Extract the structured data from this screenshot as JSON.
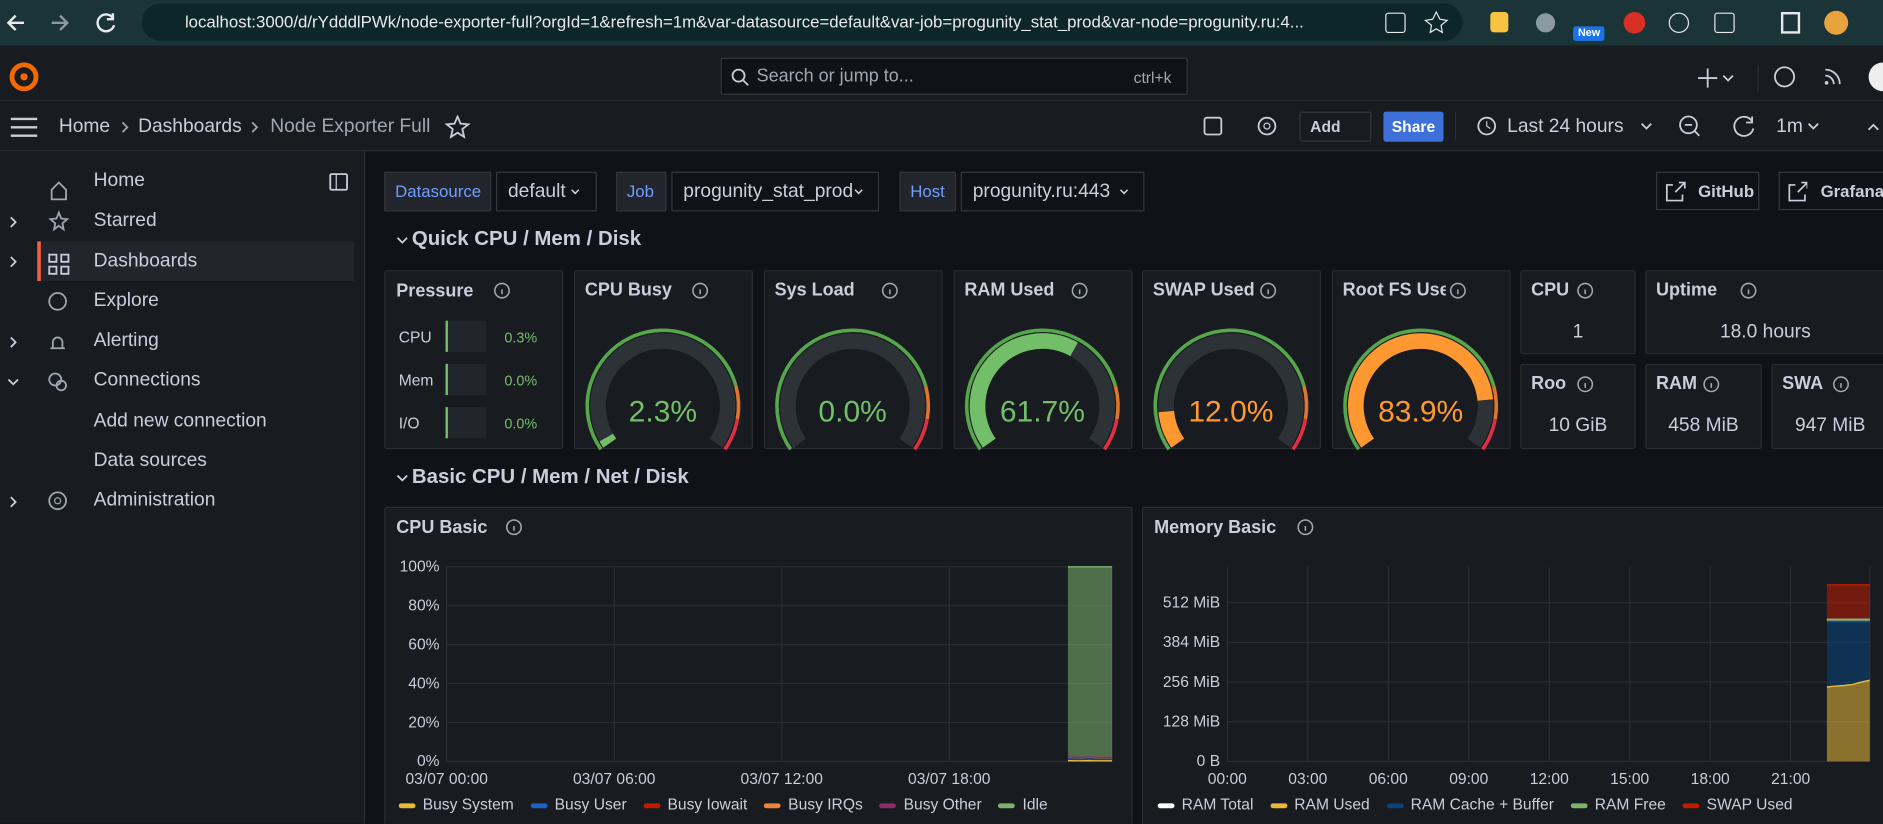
{
  "browser": {
    "url": "localhost:3000/d/rYdddlPWk/node-exporter-full?orgId=1&refresh=1m&var-datasource=default&var-job=progunity_stat_prod&var-node=progunity.ru:4...",
    "extension_badge": "New"
  },
  "search": {
    "placeholder": "Search or jump to...",
    "shortcut": "ctrl+k"
  },
  "breadcrumb": [
    "Home",
    "Dashboards",
    "Node Exporter Full"
  ],
  "toolbar": {
    "add": "Add",
    "share": "Share",
    "time_range": "Last 24 hours",
    "refresh": "1m"
  },
  "sidebar": [
    "Home",
    "Starred",
    "Dashboards",
    "Explore",
    "Alerting",
    "Connections",
    "Add new connection",
    "Data sources",
    "Administration"
  ],
  "variables": [
    {
      "label": "Datasource",
      "value": "default"
    },
    {
      "label": "Job",
      "value": "progunity_stat_prod"
    },
    {
      "label": "Host",
      "value": "progunity.ru:443"
    }
  ],
  "links": [
    "GitHub",
    "Grafana"
  ],
  "rows": [
    "Quick CPU / Mem / Disk",
    "Basic CPU / Mem / Net / Disk"
  ],
  "pressure": {
    "title": "Pressure",
    "items": [
      {
        "label": "CPU",
        "value": "0.3%"
      },
      {
        "label": "Mem",
        "value": "0.0%"
      },
      {
        "label": "I/O",
        "value": "0.0%"
      }
    ]
  },
  "gauge_range": [
    0,
    100
  ],
  "gauges": [
    {
      "title": "CPU Busy",
      "value": 2.3,
      "value_label": "2.3%",
      "color": "#73bf69"
    },
    {
      "title": "Sys Load",
      "value": 0.0,
      "value_label": "0.0%",
      "color": "#73bf69"
    },
    {
      "title": "RAM Used",
      "value": 61.7,
      "value_label": "61.7%",
      "color": "#73bf69"
    },
    {
      "title": "SWAP Used",
      "value": 12.0,
      "value_label": "12.0%",
      "color": "#ff9830"
    },
    {
      "title": "Root FS Used",
      "value": 83.9,
      "value_label": "83.9%",
      "color": "#ff9830"
    }
  ],
  "stats": [
    {
      "title": "CPU",
      "value": "1"
    },
    {
      "title": "Uptime",
      "value": "18.0 hours"
    },
    {
      "title": "Roo",
      "value": "10 GiB"
    },
    {
      "title": "RAM",
      "value": "458 MiB"
    },
    {
      "title": "SWA",
      "value": "947 MiB"
    }
  ],
  "charts": [
    {
      "type": "area",
      "title": "CPU Basic",
      "grid": true,
      "x": [
        22.25,
        22.5,
        22.75,
        23,
        23.25,
        23.5,
        23.83
      ],
      "xlim": [
        0,
        23.83
      ],
      "xticks": [
        {
          "value": 0,
          "label": "03/07 00:00"
        },
        {
          "value": 6,
          "label": "03/07 06:00"
        },
        {
          "value": 12,
          "label": "03/07 12:00"
        },
        {
          "value": 18,
          "label": "03/07 18:00"
        }
      ],
      "ylim": [
        0,
        100
      ],
      "yticks": [
        {
          "value": 0,
          "label": "0%"
        },
        {
          "value": 20,
          "label": "20%"
        },
        {
          "value": 40,
          "label": "40%"
        },
        {
          "value": 60,
          "label": "60%"
        },
        {
          "value": 80,
          "label": "80%"
        },
        {
          "value": 100,
          "label": "100%"
        }
      ],
      "series": [
        {
          "name": "Busy System",
          "color": "#eab839",
          "stack": true,
          "values": [
            0.4,
            0.3,
            0.3,
            0.4,
            0.3,
            0.3,
            0.3
          ]
        },
        {
          "name": "Busy User",
          "color": "#1f60c4",
          "stack": true,
          "values": [
            1.6,
            1.5,
            1.4,
            1.7,
            1.5,
            1.6,
            1.5
          ]
        },
        {
          "name": "Busy Iowait",
          "color": "#bf1b00",
          "stack": true,
          "values": [
            0.3,
            0.1,
            0.2,
            0.1,
            0.2,
            0.1,
            0.2
          ]
        },
        {
          "name": "Busy IRQs",
          "color": "#ef843c",
          "stack": true,
          "values": [
            0,
            0,
            0,
            0,
            0,
            0,
            0
          ]
        },
        {
          "name": "Busy Other",
          "color": "#8e2b6a",
          "stack": true,
          "values": [
            0.1,
            0.1,
            0.1,
            0.1,
            0.1,
            0.1,
            0.1
          ]
        },
        {
          "name": "Idle",
          "color": "#7eb26d",
          "stack": true,
          "values": [
            97.6,
            98.0,
            98.0,
            97.7,
            97.9,
            97.9,
            97.9
          ]
        }
      ]
    },
    {
      "type": "area",
      "title": "Memory Basic",
      "grid": true,
      "x": [
        22.35,
        22.7,
        23.0,
        23.3,
        23.6,
        23.95
      ],
      "xlim": [
        0,
        23.95
      ],
      "xticks": [
        {
          "value": 0,
          "label": "00:00"
        },
        {
          "value": 3,
          "label": "03:00"
        },
        {
          "value": 6,
          "label": "06:00"
        },
        {
          "value": 9,
          "label": "09:00"
        },
        {
          "value": 12,
          "label": "12:00"
        },
        {
          "value": 15,
          "label": "15:00"
        },
        {
          "value": 18,
          "label": "18:00"
        },
        {
          "value": 21,
          "label": "21:00"
        }
      ],
      "ylim": [
        0,
        628
      ],
      "yticks": [
        {
          "value": 0,
          "label": "0 B"
        },
        {
          "value": 128,
          "label": "128 MiB"
        },
        {
          "value": 256,
          "label": "256 MiB"
        },
        {
          "value": 384,
          "label": "384 MiB"
        },
        {
          "value": 512,
          "label": "512 MiB"
        }
      ],
      "series": [
        {
          "name": "RAM Total",
          "color": "#ffffff",
          "stack": false,
          "values": [
            458,
            458,
            458,
            458,
            458,
            458
          ]
        },
        {
          "name": "RAM Used",
          "color": "#eab839",
          "stack": true,
          "values": [
            240,
            243,
            245,
            248,
            255,
            262
          ]
        },
        {
          "name": "RAM Cache + Buffer",
          "color": "#0a437c",
          "stack": true,
          "values": [
            210,
            207,
            205,
            202,
            195,
            188
          ]
        },
        {
          "name": "RAM Free",
          "color": "#7eb26d",
          "stack": true,
          "values": [
            8,
            8,
            8,
            8,
            8,
            8
          ]
        },
        {
          "name": "SWAP Used",
          "color": "#bf1b00",
          "stack": true,
          "values": [
            112,
            112,
            112,
            112,
            112,
            112
          ]
        }
      ]
    }
  ]
}
